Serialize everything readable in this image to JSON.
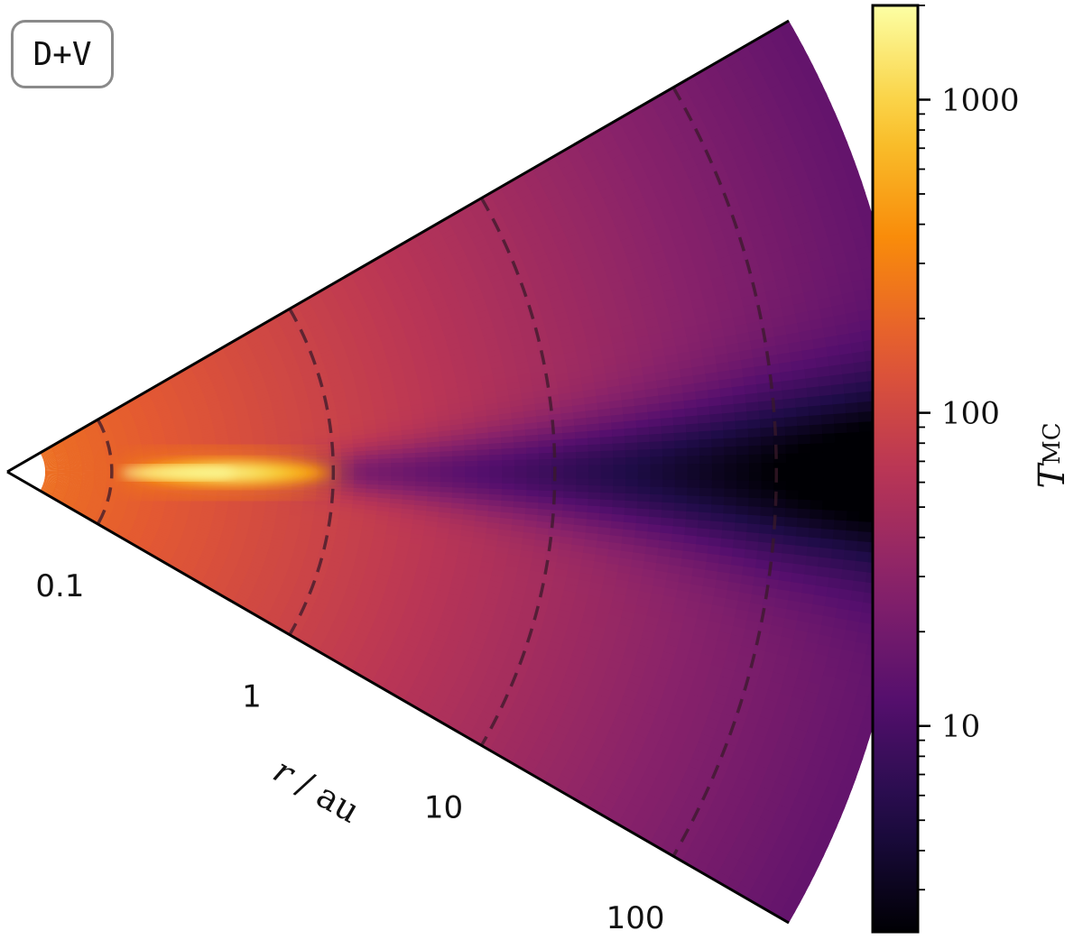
{
  "panel_label": "D+V",
  "chart_data": {
    "type": "heatmap",
    "description_text": "",
    "radial_axis": {
      "label_r": "r",
      "label_sep": "/",
      "label_unit": "au",
      "scale": "log",
      "ticks": [
        {
          "value": 0.1,
          "label": "0.1"
        },
        {
          "value": 1,
          "label": "1"
        },
        {
          "value": 10,
          "label": "10"
        },
        {
          "value": 100,
          "label": "100"
        }
      ],
      "range": [
        0.05,
        400
      ],
      "dashed_circles_at": [
        0.1,
        1,
        10,
        100
      ]
    },
    "colorbar": {
      "label_main": "T",
      "label_sub": "MC",
      "scale": "log",
      "range": [
        2.2,
        2000
      ],
      "colormap": "inferno",
      "ticks": [
        {
          "value": 10,
          "label": "10"
        },
        {
          "value": 100,
          "label": "100"
        },
        {
          "value": 1000,
          "label": "1000"
        }
      ]
    },
    "features": {
      "hot_midplane_inner_zone_au": [
        0.12,
        1.0
      ],
      "hot_midplane_peak_T": 1500,
      "cold_midplane_outer_T": 3
    },
    "colors": {
      "axis": "#000000",
      "dashed": "#3a1a2a",
      "panel_border": "#8a8a8a"
    }
  }
}
